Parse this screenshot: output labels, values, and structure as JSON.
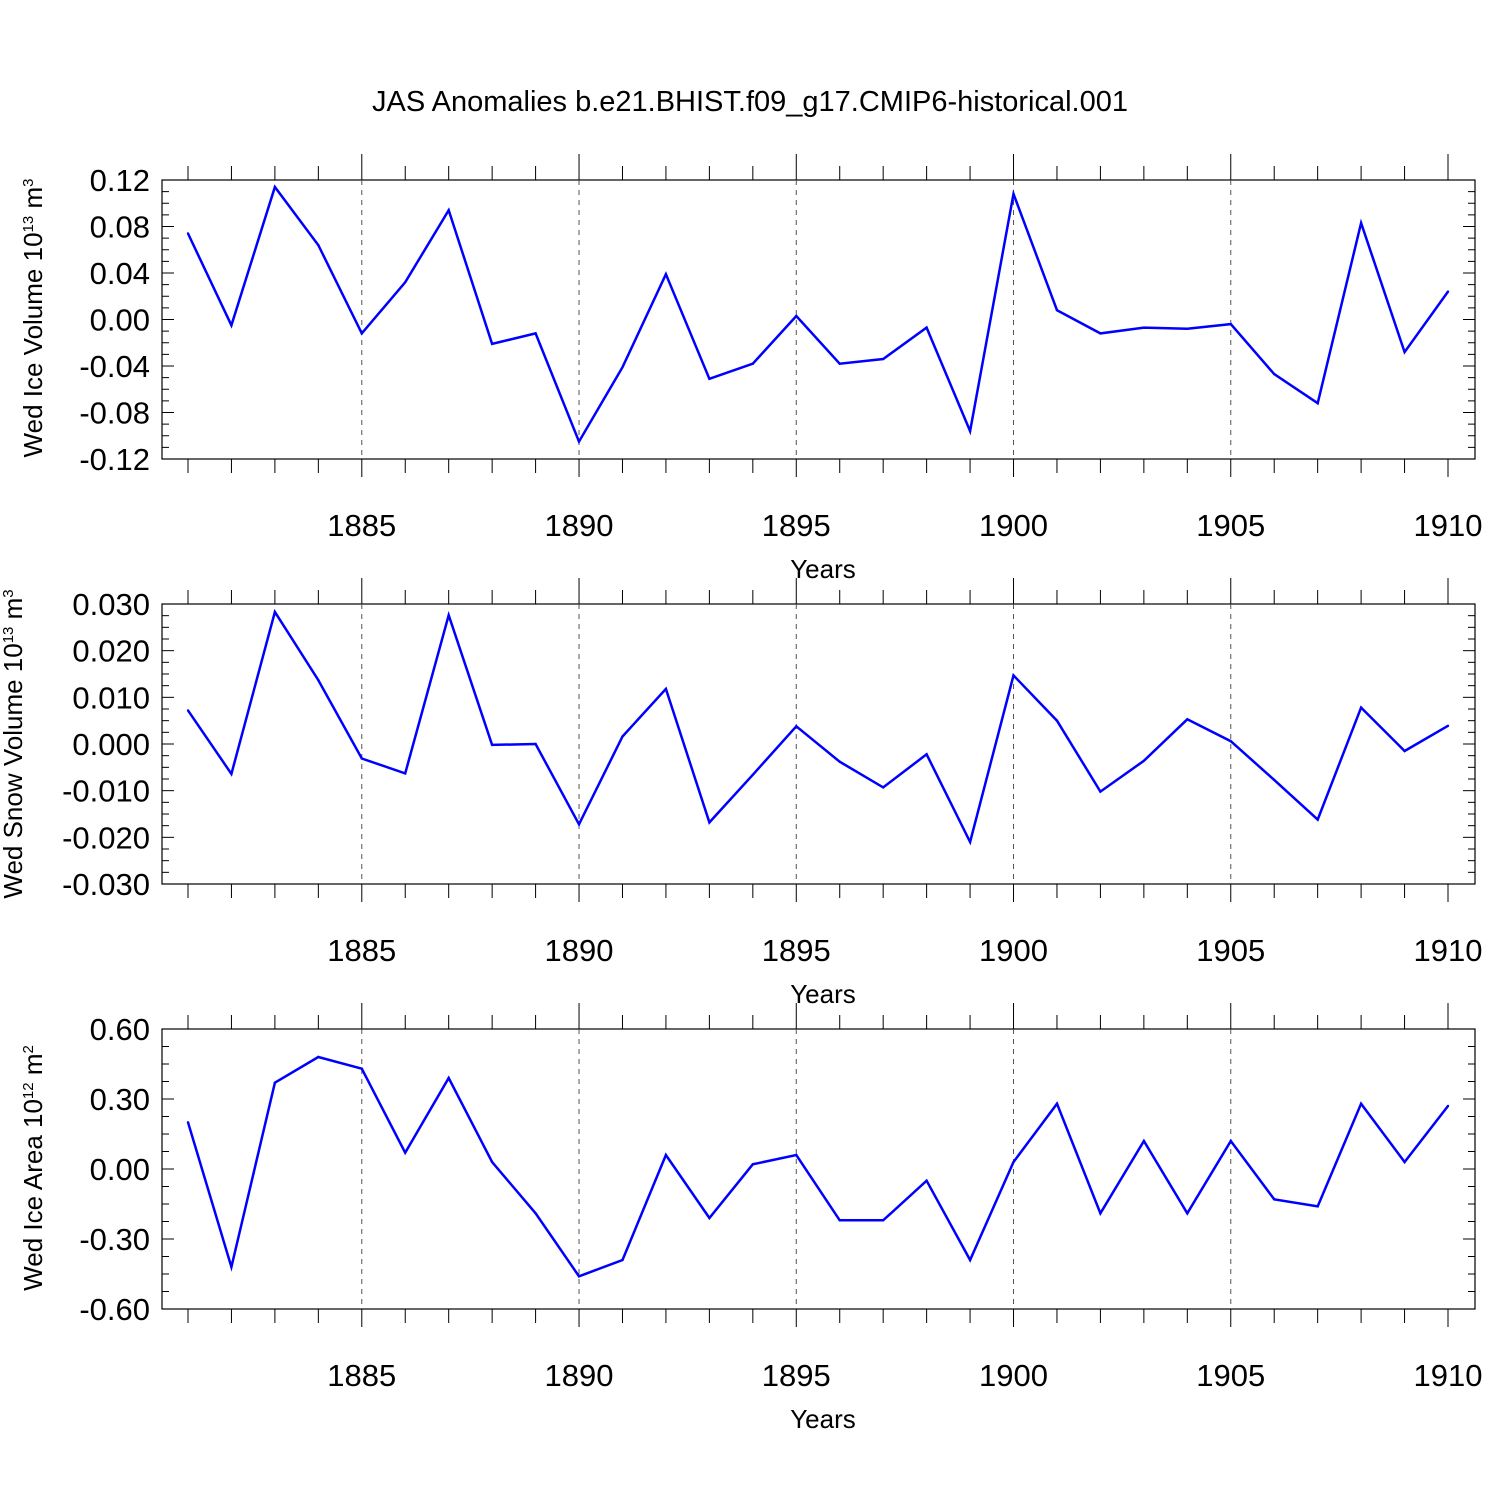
{
  "title": "JAS Anomalies b.e21.BHIST.f09_g17.CMIP6-historical.001",
  "line_color": "#0000ff",
  "grid_color": "#555555",
  "chart_data": [
    {
      "type": "line",
      "ylabel_main": "Wed Ice Volume 10",
      "ylabel_exp": "13",
      "ylabel_unit": " m",
      "ylabel_unit_exp": "3",
      "xlabel": "Years",
      "xlim": [
        1881,
        1910
      ],
      "ylim": [
        -0.12,
        0.12
      ],
      "yticks": [
        0.12,
        0.08,
        0.04,
        0.0,
        -0.04,
        -0.08,
        -0.12
      ],
      "ytick_labels": [
        "0.12",
        "0.08",
        "0.04",
        "0.00",
        "-0.04",
        "-0.08",
        "-0.12"
      ],
      "xticks": [
        1885,
        1890,
        1895,
        1900,
        1905,
        1910
      ],
      "xtick_labels": [
        "1885",
        "1890",
        "1895",
        "1900",
        "1905",
        "1910"
      ],
      "grid": "dashed vertical lines at labeled years",
      "x": [
        1881,
        1882,
        1883,
        1884,
        1885,
        1886,
        1887,
        1888,
        1889,
        1890,
        1891,
        1892,
        1893,
        1894,
        1895,
        1896,
        1897,
        1898,
        1899,
        1900,
        1901,
        1902,
        1903,
        1904,
        1905,
        1906,
        1907,
        1908,
        1909,
        1910
      ],
      "values": [
        0.074,
        -0.005,
        0.114,
        0.064,
        -0.012,
        0.032,
        0.094,
        -0.021,
        -0.012,
        -0.105,
        -0.041,
        0.039,
        -0.051,
        -0.038,
        0.003,
        -0.038,
        -0.034,
        -0.007,
        -0.096,
        0.108,
        0.008,
        -0.012,
        -0.007,
        -0.008,
        -0.004,
        -0.047,
        -0.072,
        0.083,
        -0.028,
        0.024
      ]
    },
    {
      "type": "line",
      "ylabel_main": "Wed Snow Volume 10",
      "ylabel_exp": "13",
      "ylabel_unit": " m",
      "ylabel_unit_exp": "3",
      "xlabel": "Years",
      "xlim": [
        1881,
        1910
      ],
      "ylim": [
        -0.03,
        0.03
      ],
      "yticks": [
        0.03,
        0.02,
        0.01,
        0.0,
        -0.01,
        -0.02,
        -0.03
      ],
      "ytick_labels": [
        "0.030",
        "0.020",
        "0.010",
        "0.000",
        "-0.010",
        "-0.020",
        "-0.030"
      ],
      "xticks": [
        1885,
        1890,
        1895,
        1900,
        1905,
        1910
      ],
      "xtick_labels": [
        "1885",
        "1890",
        "1895",
        "1900",
        "1905",
        "1910"
      ],
      "grid": "dashed vertical lines at labeled years",
      "x": [
        1881,
        1882,
        1883,
        1884,
        1885,
        1886,
        1887,
        1888,
        1889,
        1890,
        1891,
        1892,
        1893,
        1894,
        1895,
        1896,
        1897,
        1898,
        1899,
        1900,
        1901,
        1902,
        1903,
        1904,
        1905,
        1906,
        1907,
        1908,
        1909,
        1910
      ],
      "values": [
        0.0072,
        -0.0064,
        0.0283,
        0.0137,
        -0.0031,
        -0.0063,
        0.0276,
        -0.0002,
        0.0,
        -0.0172,
        0.0016,
        0.0118,
        -0.0168,
        -0.0066,
        0.0038,
        -0.0038,
        -0.0093,
        -0.0022,
        -0.021,
        0.0147,
        0.005,
        -0.0102,
        -0.0036,
        0.0053,
        0.0006,
        -0.0077,
        -0.0162,
        0.0078,
        -0.0015,
        0.0039
      ]
    },
    {
      "type": "line",
      "ylabel_main": "Wed Ice Area 10",
      "ylabel_exp": "12",
      "ylabel_unit": " m",
      "ylabel_unit_exp": "2",
      "xlabel": "Years",
      "xlim": [
        1881,
        1910
      ],
      "ylim": [
        -0.6,
        0.6
      ],
      "yticks": [
        0.6,
        0.3,
        0.0,
        -0.3,
        -0.6
      ],
      "ytick_labels": [
        "0.60",
        "0.30",
        "0.00",
        "-0.30",
        "-0.60"
      ],
      "xticks": [
        1885,
        1890,
        1895,
        1900,
        1905,
        1910
      ],
      "xtick_labels": [
        "1885",
        "1890",
        "1895",
        "1900",
        "1905",
        "1910"
      ],
      "grid": "dashed vertical lines at labeled years",
      "x": [
        1881,
        1882,
        1883,
        1884,
        1885,
        1886,
        1887,
        1888,
        1889,
        1890,
        1891,
        1892,
        1893,
        1894,
        1895,
        1896,
        1897,
        1898,
        1899,
        1900,
        1901,
        1902,
        1903,
        1904,
        1905,
        1906,
        1907,
        1908,
        1909,
        1910
      ],
      "values": [
        0.2,
        -0.42,
        0.37,
        0.48,
        0.43,
        0.07,
        0.39,
        0.03,
        -0.19,
        -0.46,
        -0.39,
        0.06,
        -0.21,
        0.02,
        0.06,
        -0.22,
        -0.22,
        -0.05,
        -0.39,
        0.03,
        0.28,
        -0.19,
        0.12,
        -0.19,
        0.12,
        -0.13,
        -0.16,
        0.28,
        0.03,
        0.27
      ]
    }
  ]
}
